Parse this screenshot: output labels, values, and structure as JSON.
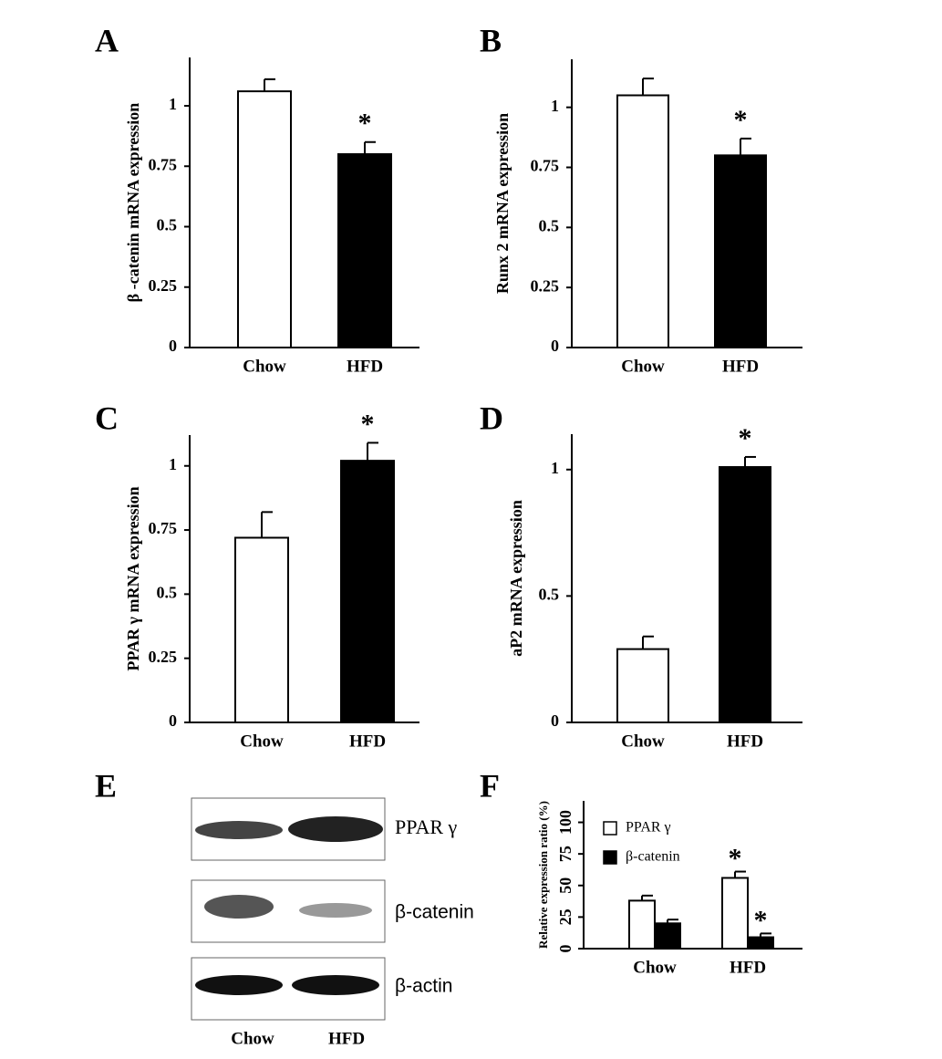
{
  "chart_data": [
    {
      "type": "bar",
      "label": "A",
      "ylabel": "β -catenin mRNA expression",
      "categories": [
        "Chow",
        "HFD"
      ],
      "values": [
        1.06,
        0.8
      ],
      "errors": [
        0.05,
        0.05
      ],
      "colors": [
        "#ffffff",
        "#000000"
      ],
      "significance": [
        null,
        "*"
      ],
      "ylim": [
        0,
        1.2
      ],
      "yticks": [
        0,
        0.25,
        0.5,
        0.75,
        1
      ]
    },
    {
      "type": "bar",
      "label": "B",
      "ylabel": "Runx 2 mRNA expression",
      "categories": [
        "Chow",
        "HFD"
      ],
      "values": [
        1.05,
        0.8
      ],
      "errors": [
        0.07,
        0.07
      ],
      "colors": [
        "#ffffff",
        "#000000"
      ],
      "significance": [
        null,
        "*"
      ],
      "ylim": [
        0,
        1.2
      ],
      "yticks": [
        0,
        0.25,
        0.5,
        0.75,
        1
      ]
    },
    {
      "type": "bar",
      "label": "C",
      "ylabel": "PPAR γ mRNA expression",
      "categories": [
        "Chow",
        "HFD"
      ],
      "values": [
        0.72,
        1.02
      ],
      "errors": [
        0.1,
        0.07
      ],
      "colors": [
        "#ffffff",
        "#000000"
      ],
      "significance": [
        null,
        "*"
      ],
      "ylim": [
        0,
        1.12
      ],
      "yticks": [
        0,
        0.25,
        0.5,
        0.75,
        1
      ]
    },
    {
      "type": "bar",
      "label": "D",
      "ylabel": "aP2 mRNA expression",
      "categories": [
        "Chow",
        "HFD"
      ],
      "values": [
        0.29,
        1.01
      ],
      "errors": [
        0.05,
        0.04
      ],
      "colors": [
        "#ffffff",
        "#000000"
      ],
      "significance": [
        null,
        "*"
      ],
      "ylim": [
        0,
        1.14
      ],
      "yticks": [
        0,
        0.5,
        1
      ]
    },
    {
      "type": "grouped_bar",
      "label": "F",
      "ylabel": "Relative expression ratio (%)",
      "categories": [
        "Chow",
        "HFD"
      ],
      "series": [
        {
          "name": "PPAR γ",
          "color": "#ffffff",
          "values": [
            38,
            56
          ],
          "errors": [
            4,
            5
          ],
          "significance": [
            null,
            "*"
          ]
        },
        {
          "name": "β-catenin",
          "color": "#000000",
          "values": [
            20,
            9
          ],
          "errors": [
            3,
            3
          ],
          "significance": [
            null,
            "*"
          ]
        }
      ],
      "legend": "upper left",
      "ylim": [
        0,
        117
      ],
      "yticks": [
        0,
        25,
        50,
        75,
        100
      ]
    }
  ],
  "blot": {
    "label": "E",
    "bands": [
      "PPAR γ",
      "β-catenin",
      "β-actin"
    ],
    "categories": [
      "Chow",
      "HFD"
    ]
  }
}
